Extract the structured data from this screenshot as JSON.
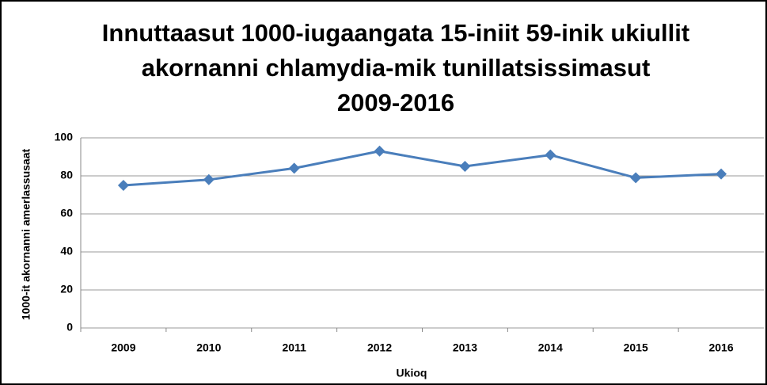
{
  "chart_data": {
    "type": "line",
    "title": [
      "Innuttaasut 1000-iugaangata 15-iniit 59-inik ukiullit",
      "akornanni chlamydia-mik tunillatsissimasut",
      "2009-2016"
    ],
    "x_label": "Ukioq",
    "y_label": "1000-it akornanni amerlassusaat",
    "categories": [
      "2009",
      "2010",
      "2011",
      "2012",
      "2013",
      "2014",
      "2015",
      "2016"
    ],
    "values": [
      75,
      78,
      84,
      93,
      85,
      91,
      79,
      81
    ],
    "color": "#4a7ebb",
    "ylim": [
      0,
      100
    ],
    "yticks": [
      0,
      20,
      40,
      60,
      80,
      100
    ],
    "grid": true
  }
}
